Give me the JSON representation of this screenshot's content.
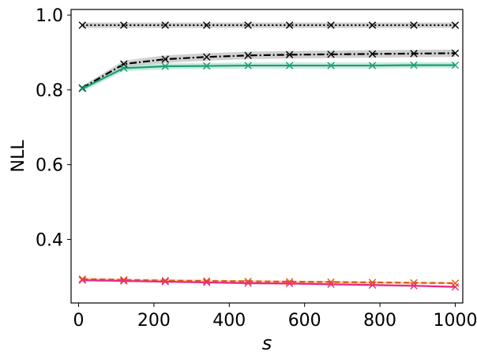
{
  "chart_data": {
    "type": "line",
    "xlabel": "s",
    "ylabel": "NLL",
    "xlim": [
      -20,
      1020
    ],
    "ylim": [
      0.23,
      1.015
    ],
    "xticks": [
      0,
      200,
      400,
      600,
      800,
      1000
    ],
    "yticks": [
      0.4,
      0.6,
      0.8,
      1.0
    ],
    "ytick_labels": [
      "0.4",
      "0.6",
      "0.8",
      "1.0"
    ],
    "x": [
      10,
      120,
      230,
      340,
      450,
      560,
      670,
      780,
      890,
      1000
    ],
    "grid": false,
    "series": [
      {
        "color": "#000000",
        "style": "dotted",
        "marker": "x",
        "band_color": "#b0b0b0",
        "values": [
          0.973,
          0.973,
          0.973,
          0.973,
          0.973,
          0.973,
          0.973,
          0.973,
          0.973,
          0.973
        ],
        "band": [
          0.007,
          0.007,
          0.007,
          0.007,
          0.007,
          0.007,
          0.007,
          0.007,
          0.007,
          0.007
        ]
      },
      {
        "color": "#000000",
        "style": "dashdot",
        "marker": "x",
        "band_color": "#b0b0b0",
        "values": [
          0.805,
          0.869,
          0.882,
          0.888,
          0.892,
          0.894,
          0.895,
          0.896,
          0.897,
          0.898
        ],
        "band": [
          0.006,
          0.009,
          0.01,
          0.01,
          0.01,
          0.01,
          0.01,
          0.01,
          0.01,
          0.01
        ]
      },
      {
        "color": "#1a9e77",
        "style": "solid",
        "marker": "x",
        "band_color": "#a6dcc8",
        "values": [
          0.803,
          0.858,
          0.863,
          0.864,
          0.865,
          0.865,
          0.865,
          0.865,
          0.866,
          0.866
        ],
        "band": [
          0.008,
          0.008,
          0.008,
          0.008,
          0.008,
          0.008,
          0.008,
          0.008,
          0.008,
          0.008
        ]
      },
      {
        "color": "#d95f02",
        "style": "dashed",
        "marker": "x",
        "band_color": "#f4b183",
        "values": [
          0.294,
          0.292,
          0.29,
          0.289,
          0.288,
          0.287,
          0.286,
          0.285,
          0.284,
          0.283
        ],
        "band": [
          0.003,
          0.003,
          0.003,
          0.003,
          0.003,
          0.003,
          0.003,
          0.003,
          0.003,
          0.003
        ]
      },
      {
        "color": "#e7298a",
        "style": "solid",
        "marker": "x",
        "band_color": "#f4a6cc",
        "values": [
          0.291,
          0.289,
          0.287,
          0.285,
          0.283,
          0.282,
          0.28,
          0.278,
          0.276,
          0.273
        ],
        "band": [
          0.003,
          0.003,
          0.003,
          0.003,
          0.003,
          0.003,
          0.003,
          0.003,
          0.003,
          0.003
        ]
      }
    ]
  }
}
